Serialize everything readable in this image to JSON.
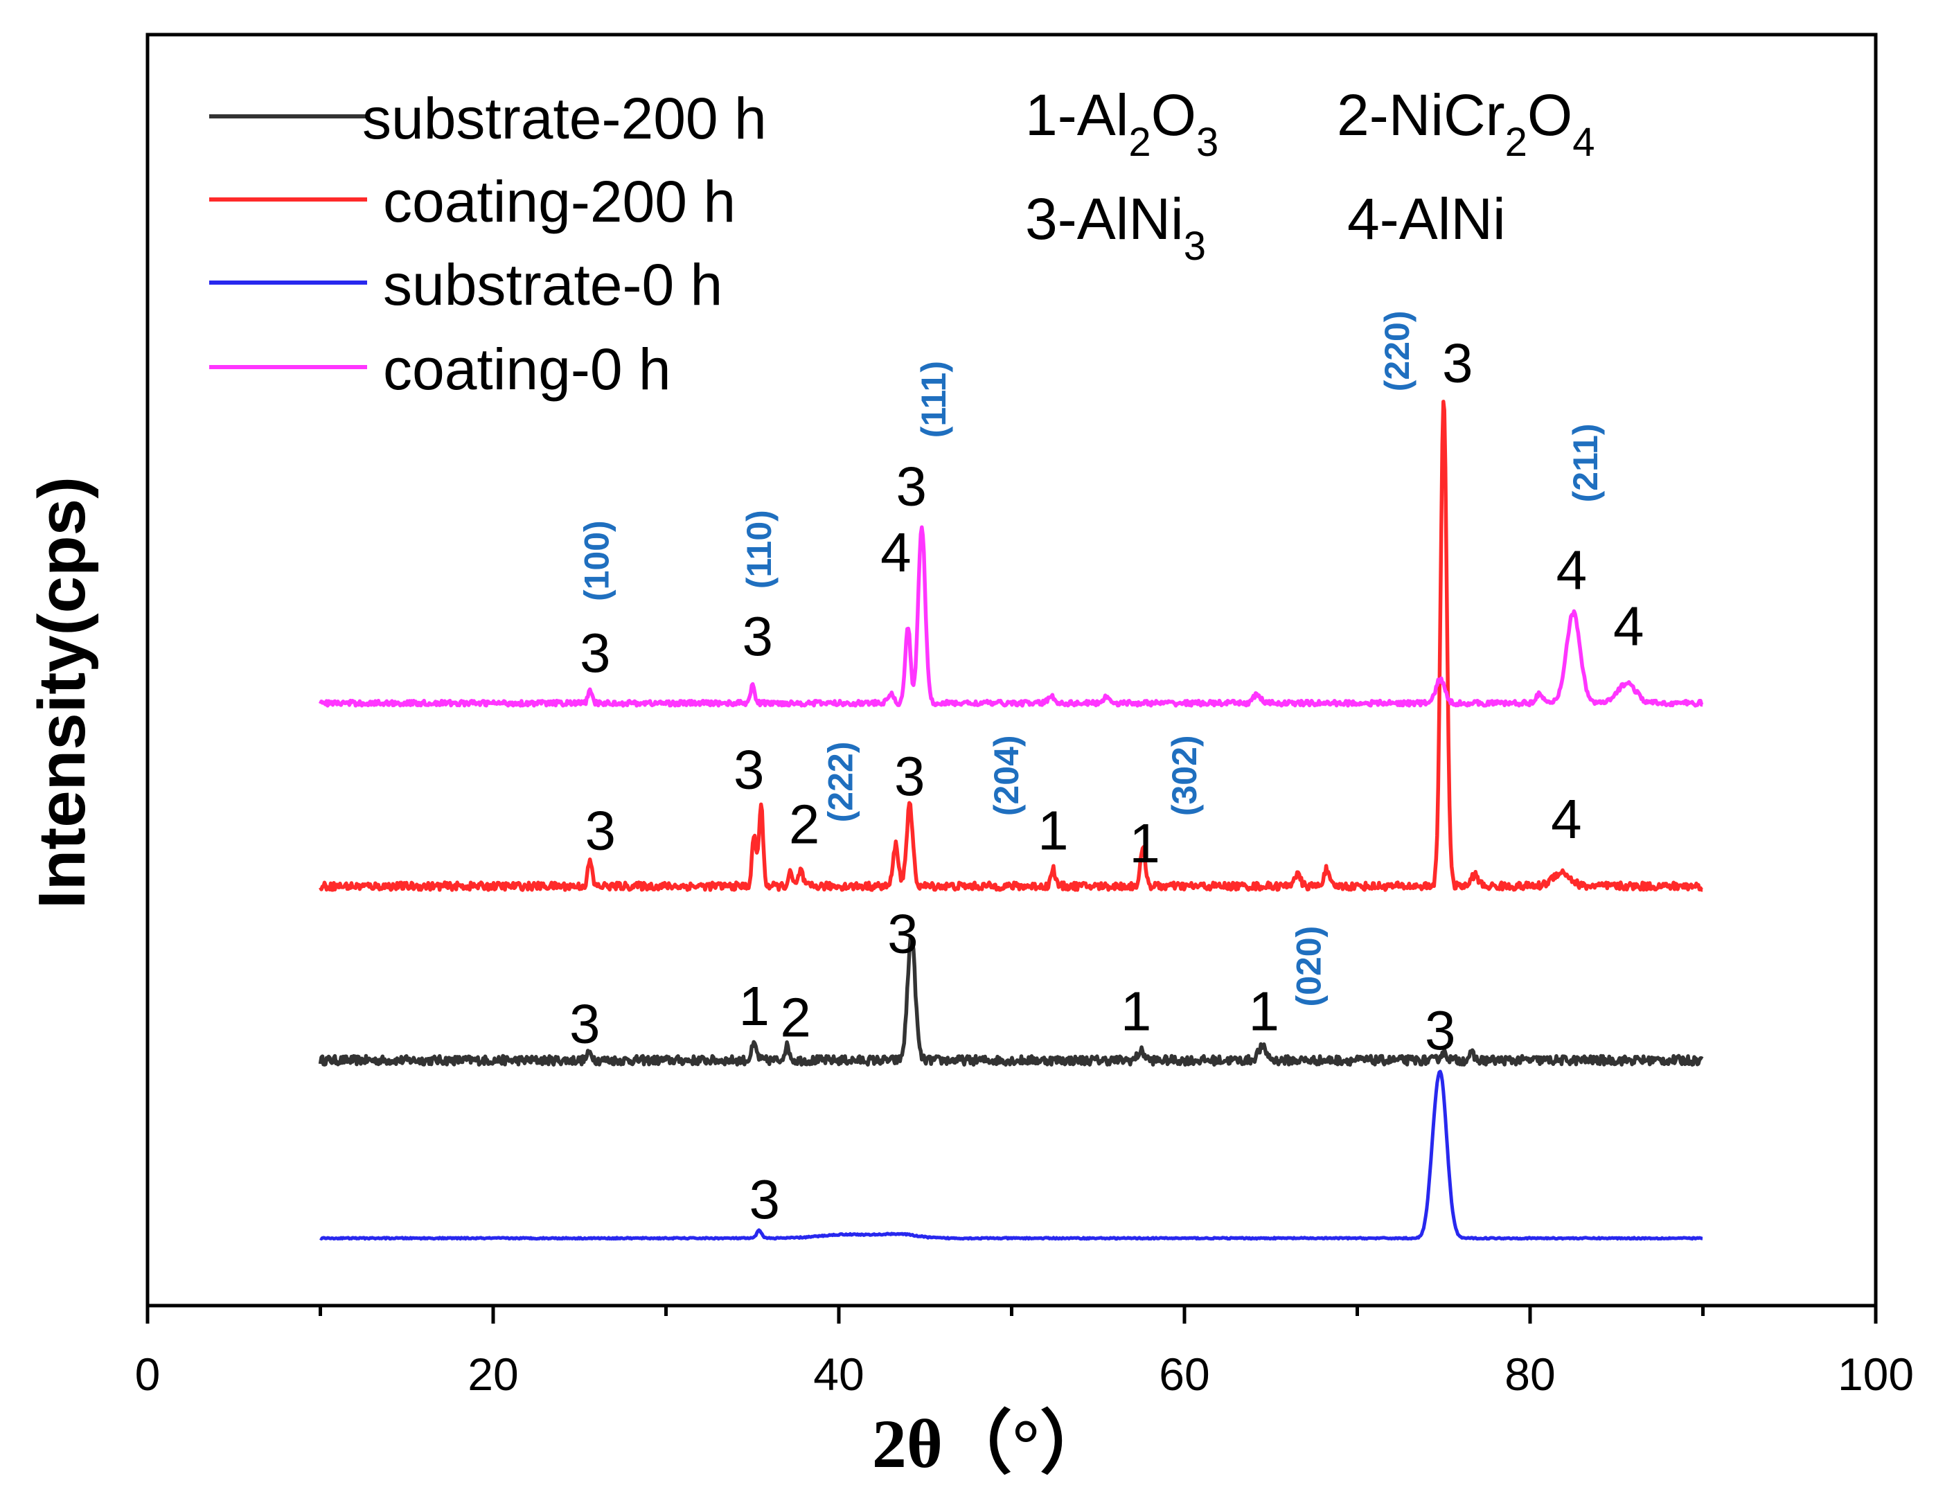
{
  "chart_data": {
    "type": "line",
    "xlabel": "2θ（°）",
    "ylabel": "Intensity(cps)",
    "xlim": [
      0,
      100
    ],
    "ylim": [
      0,
      100
    ],
    "x_ticks": [
      0,
      20,
      40,
      60,
      80,
      100
    ],
    "x_tick_labels": [
      "0",
      "20",
      "40",
      "60",
      "80",
      "100"
    ],
    "y_ticks_shown": false,
    "legend_position": "top-left",
    "series": [
      {
        "name": "substrate-200 h",
        "color": "#333333",
        "baseline": 19.3,
        "noise": 0.35,
        "x_range": [
          10,
          90
        ],
        "peaks": [
          {
            "x": 25.6,
            "h": 0.6,
            "w": 0.15
          },
          {
            "x": 35.1,
            "h": 1.2,
            "w": 0.15
          },
          {
            "x": 37.0,
            "h": 1.1,
            "w": 0.15
          },
          {
            "x": 44.2,
            "h": 9.8,
            "w": 0.22
          },
          {
            "x": 57.5,
            "h": 0.7,
            "w": 0.2
          },
          {
            "x": 64.5,
            "h": 1.0,
            "w": 0.25
          },
          {
            "x": 75.0,
            "h": 0.6,
            "w": 0.2
          },
          {
            "x": 76.6,
            "h": 0.5,
            "w": 0.15
          }
        ]
      },
      {
        "name": "coating-200 h",
        "color": "#ff2a2a",
        "baseline": 33.0,
        "noise": 0.3,
        "x_range": [
          10,
          90
        ],
        "peaks": [
          {
            "x": 25.6,
            "h": 2.0,
            "w": 0.12
          },
          {
            "x": 35.1,
            "h": 4.0,
            "w": 0.12
          },
          {
            "x": 35.5,
            "h": 6.4,
            "w": 0.12
          },
          {
            "x": 37.2,
            "h": 1.0,
            "w": 0.12
          },
          {
            "x": 37.8,
            "h": 1.3,
            "w": 0.12
          },
          {
            "x": 43.3,
            "h": 3.3,
            "w": 0.15
          },
          {
            "x": 44.1,
            "h": 6.3,
            "w": 0.18
          },
          {
            "x": 52.4,
            "h": 1.4,
            "w": 0.12
          },
          {
            "x": 57.6,
            "h": 2.9,
            "w": 0.15
          },
          {
            "x": 66.5,
            "h": 0.9,
            "w": 0.2
          },
          {
            "x": 68.2,
            "h": 1.3,
            "w": 0.15
          },
          {
            "x": 75.0,
            "h": 38.4,
            "w": 0.18
          },
          {
            "x": 76.8,
            "h": 0.9,
            "w": 0.2
          },
          {
            "x": 81.8,
            "h": 1.1,
            "w": 0.5
          }
        ]
      },
      {
        "name": "substrate-0 h",
        "color": "#2828ee",
        "baseline": 5.3,
        "noise": 0.05,
        "x_range": [
          10,
          90
        ],
        "peaks": [
          {
            "x": 35.4,
            "h": 0.6,
            "w": 0.15
          },
          {
            "x": 40.5,
            "h": 0.3,
            "w": 1.5
          },
          {
            "x": 43.5,
            "h": 0.3,
            "w": 1.0
          },
          {
            "x": 74.8,
            "h": 12.9,
            "w": 0.38
          },
          {
            "x": 74.3,
            "h": 1.5,
            "w": 0.25
          }
        ]
      },
      {
        "name": "coating-0 h",
        "color": "#ff35ff",
        "baseline": 47.4,
        "noise": 0.2,
        "x_range": [
          10,
          90
        ],
        "peaks": [
          {
            "x": 25.6,
            "h": 0.9,
            "w": 0.12
          },
          {
            "x": 35.0,
            "h": 1.4,
            "w": 0.12
          },
          {
            "x": 43.0,
            "h": 0.8,
            "w": 0.15
          },
          {
            "x": 44.0,
            "h": 6.1,
            "w": 0.15
          },
          {
            "x": 44.8,
            "h": 14.0,
            "w": 0.2
          },
          {
            "x": 52.3,
            "h": 0.5,
            "w": 0.2
          },
          {
            "x": 55.5,
            "h": 0.5,
            "w": 0.2
          },
          {
            "x": 64.2,
            "h": 0.7,
            "w": 0.2
          },
          {
            "x": 74.8,
            "h": 1.9,
            "w": 0.25
          },
          {
            "x": 80.5,
            "h": 0.7,
            "w": 0.2
          },
          {
            "x": 82.5,
            "h": 7.1,
            "w": 0.4
          },
          {
            "x": 85.6,
            "h": 1.6,
            "w": 0.5
          }
        ]
      }
    ],
    "phase_key": [
      {
        "num": "1",
        "base": "Al",
        "s1": "2",
        "mid": "O",
        "s2": "3"
      },
      {
        "num": "2",
        "base": "NiCr",
        "s1": "2",
        "mid": "O",
        "s2": "4"
      },
      {
        "num": "3",
        "base": "AlNi",
        "s1": "3",
        "mid": "",
        "s2": ""
      },
      {
        "num": "4",
        "base": "AlNi",
        "s1": "",
        "mid": "",
        "s2": ""
      }
    ],
    "peak_labels": [
      {
        "text": "3",
        "x": 25.9,
        "y": 51.4
      },
      {
        "text": "3",
        "x": 35.3,
        "y": 52.7
      },
      {
        "text": "4",
        "x": 43.3,
        "y": 59.3
      },
      {
        "text": "3",
        "x": 44.2,
        "y": 64.5
      },
      {
        "text": "3",
        "x": 75.8,
        "y": 74.2
      },
      {
        "text": "4",
        "x": 82.4,
        "y": 57.9
      },
      {
        "text": "4",
        "x": 85.7,
        "y": 53.5
      },
      {
        "text": "3",
        "x": 26.2,
        "y": 37.4
      },
      {
        "text": "3",
        "x": 34.8,
        "y": 42.2
      },
      {
        "text": "2",
        "x": 38.0,
        "y": 37.9
      },
      {
        "text": "3",
        "x": 44.1,
        "y": 41.7
      },
      {
        "text": "1",
        "x": 52.4,
        "y": 37.4
      },
      {
        "text": "1",
        "x": 57.7,
        "y": 36.4
      },
      {
        "text": "4",
        "x": 82.1,
        "y": 38.3
      },
      {
        "text": "3",
        "x": 25.3,
        "y": 22.2
      },
      {
        "text": "1",
        "x": 35.1,
        "y": 23.6
      },
      {
        "text": "2",
        "x": 37.5,
        "y": 22.7
      },
      {
        "text": "3",
        "x": 43.7,
        "y": 29.3
      },
      {
        "text": "1",
        "x": 57.2,
        "y": 23.2
      },
      {
        "text": "1",
        "x": 64.6,
        "y": 23.2
      },
      {
        "text": "3",
        "x": 74.8,
        "y": 21.7
      },
      {
        "text": "3",
        "x": 35.7,
        "y": 8.4
      }
    ],
    "hkl_labels": [
      {
        "text": "(100)",
        "x": 26.0,
        "y": 58.6
      },
      {
        "text": "(110)",
        "x": 35.4,
        "y": 59.5
      },
      {
        "text": "(111)",
        "x": 45.5,
        "y": 71.3
      },
      {
        "text": "(220)",
        "x": 72.3,
        "y": 75.1
      },
      {
        "text": "(211)",
        "x": 83.2,
        "y": 66.3
      },
      {
        "text": "(222)",
        "x": 40.1,
        "y": 41.2
      },
      {
        "text": "(204)",
        "x": 49.7,
        "y": 41.7
      },
      {
        "text": "(302)",
        "x": 60.0,
        "y": 41.7
      },
      {
        "text": "(020)",
        "x": 67.2,
        "y": 26.7
      }
    ]
  }
}
